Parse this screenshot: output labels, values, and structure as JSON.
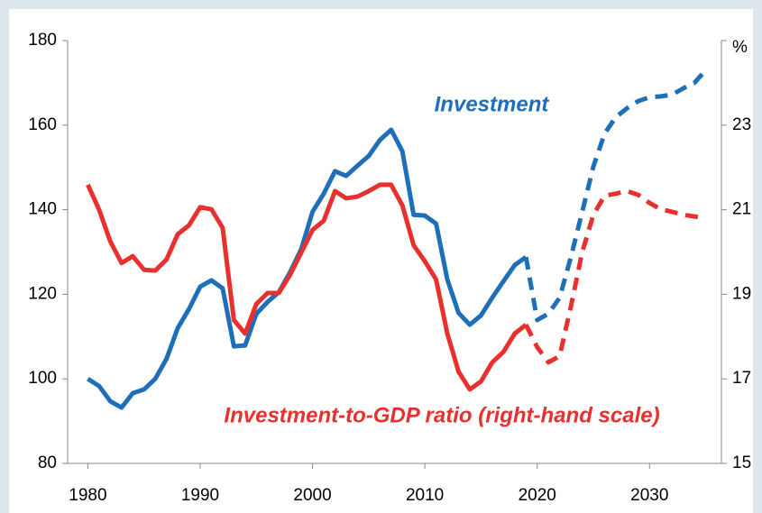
{
  "chart_data": {
    "type": "line",
    "x": [
      1980,
      1981,
      1982,
      1983,
      1984,
      1985,
      1986,
      1987,
      1988,
      1989,
      1990,
      1991,
      1992,
      1993,
      1994,
      1995,
      1996,
      1997,
      1998,
      1999,
      2000,
      2001,
      2002,
      2003,
      2004,
      2005,
      2006,
      2007,
      2008,
      2009,
      2010,
      2011,
      2012,
      2013,
      2014,
      2015,
      2016,
      2017,
      2018,
      2019,
      2020,
      2021,
      2022,
      2023,
      2024,
      2025,
      2026,
      2027,
      2028,
      2029,
      2030,
      2031,
      2032,
      2033,
      2034,
      2035
    ],
    "series": [
      {
        "name": "Investment",
        "color": "#1f6fb8",
        "axis": "y",
        "values": [
          100,
          98.3,
          94.7,
          93.2,
          96.6,
          97.5,
          100,
          104.7,
          112,
          116.5,
          121.8,
          123.3,
          121.4,
          107.7,
          107.9,
          115.4,
          118.2,
          120.5,
          125.2,
          130.7,
          139.5,
          143.8,
          149.1,
          148,
          150.4,
          152.7,
          156.5,
          158.9,
          153.8,
          138.8,
          138.6,
          136.7,
          123.5,
          115.6,
          112.8,
          115,
          119.2,
          123.1,
          126.9,
          128.8,
          113.9,
          115.4,
          119.2,
          128.8,
          139.4,
          150.2,
          158,
          161.9,
          164,
          165.7,
          166.6,
          166.8,
          167.2,
          168.7,
          170,
          173
        ]
      },
      {
        "name": "Investment-to-GDP ratio (right-hand scale)",
        "color": "#e8302f",
        "axis": "y2",
        "values": [
          21.59,
          21.0,
          20.25,
          19.74,
          19.9,
          19.58,
          19.56,
          19.82,
          20.42,
          20.63,
          21.06,
          21.01,
          20.57,
          18.39,
          18.07,
          18.77,
          19.03,
          19.03,
          19.46,
          19.99,
          20.52,
          20.74,
          21.44,
          21.27,
          21.31,
          21.44,
          21.59,
          21.59,
          21.1,
          20.16,
          19.78,
          19.35,
          18.07,
          17.17,
          16.75,
          16.94,
          17.39,
          17.64,
          18.07,
          18.28,
          17.75,
          17.39,
          17.54,
          18.71,
          19.99,
          20.88,
          21.33,
          21.38,
          21.44,
          21.35,
          21.16,
          21.01,
          20.95,
          20.88,
          20.84,
          20.8
        ]
      }
    ],
    "dashed_from": 2019,
    "xlim": [
      1978.2,
      2036.4
    ],
    "xticks": [
      1980,
      1990,
      2000,
      2010,
      2020,
      2030
    ],
    "ylim": [
      80,
      180
    ],
    "yticks": [
      80,
      100,
      120,
      140,
      160,
      180
    ],
    "y2lim": [
      15,
      25
    ],
    "y2ticks": [
      15,
      17,
      19,
      21,
      23,
      {
        "value": 25,
        "label": "%"
      }
    ]
  }
}
